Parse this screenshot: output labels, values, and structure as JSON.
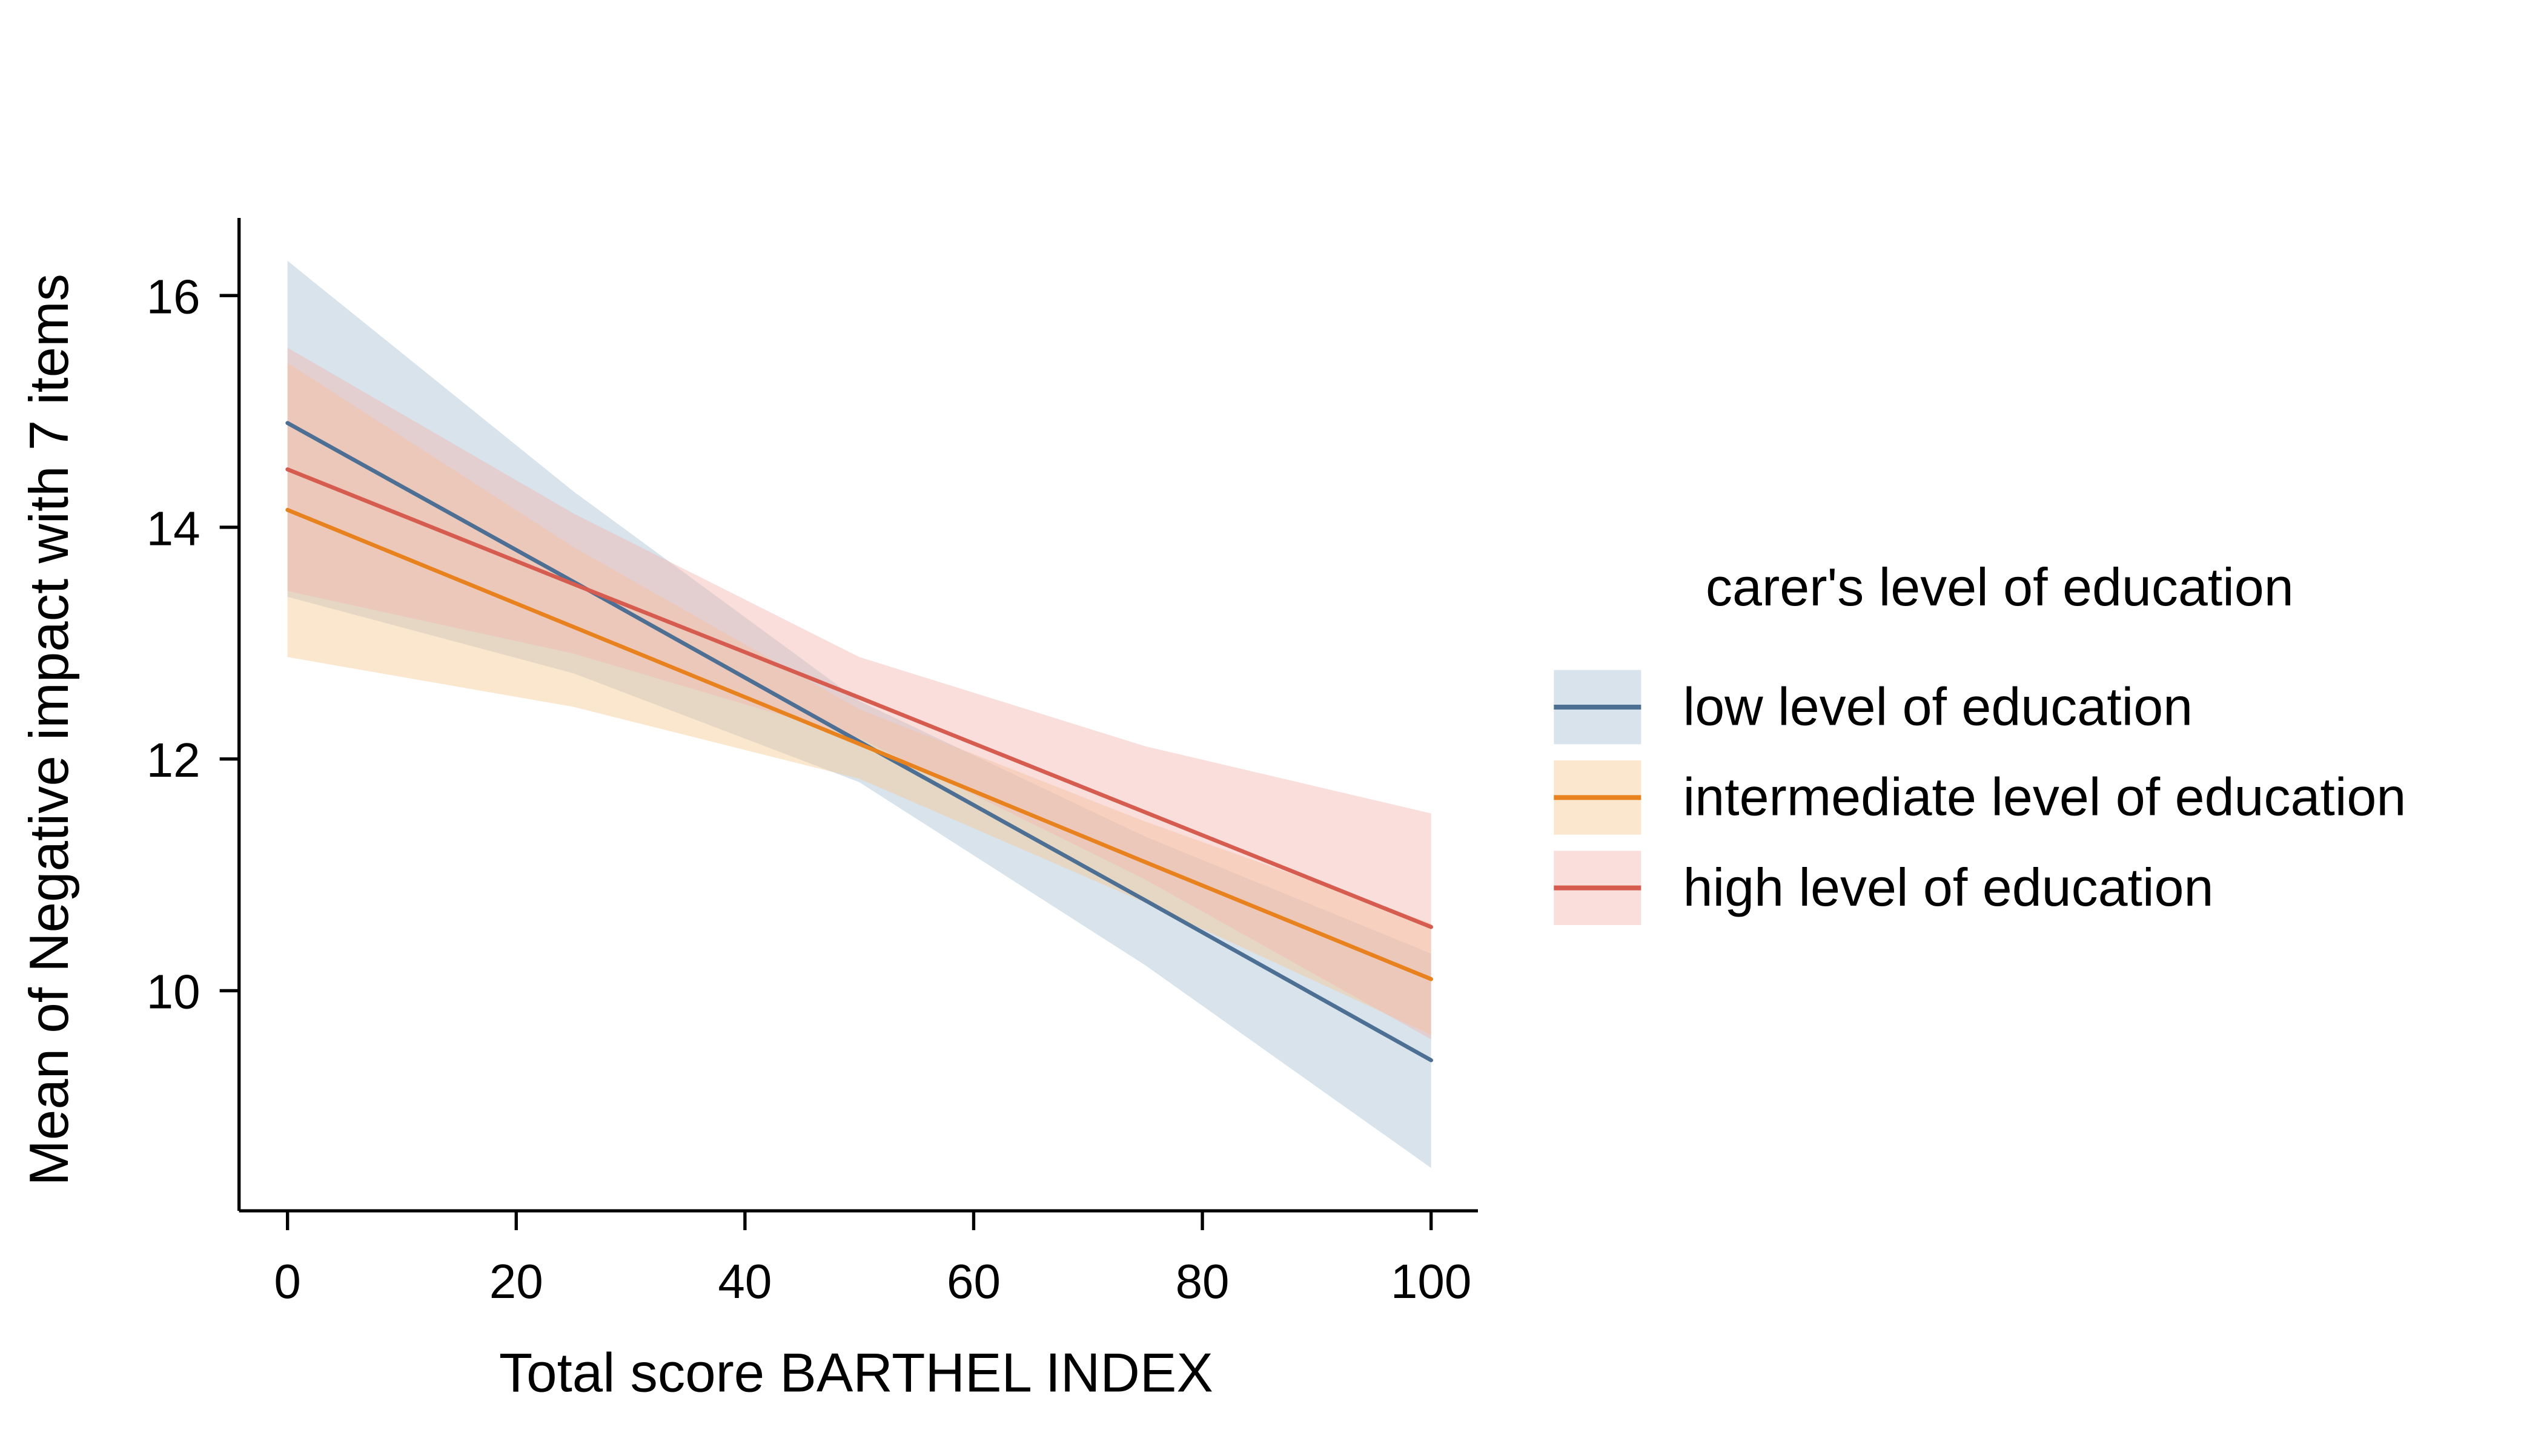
{
  "chart_data": {
    "type": "line",
    "title": "",
    "xlabel": "Total score BARTHEL INDEX",
    "ylabel": "Mean of Negative impact with 7 items",
    "legend_title": "carer's level of education",
    "legend_position": "right",
    "grid": false,
    "xlim": [
      0,
      100
    ],
    "ylim": [
      8.1,
      16.67
    ],
    "x_ticks": [
      0,
      20,
      40,
      60,
      80,
      100
    ],
    "y_ticks": [
      10,
      12,
      14,
      16
    ],
    "x": [
      0,
      25,
      50,
      75,
      100
    ],
    "series": [
      {
        "name": "low level of education",
        "values": [
          14.9,
          13.53,
          12.15,
          10.78,
          9.4
        ],
        "ci_upper": [
          16.3,
          14.31,
          12.5,
          11.33,
          10.32
        ],
        "ci_lower": [
          13.4,
          12.74,
          11.8,
          10.22,
          8.47
        ],
        "line_color": "#4c6f93",
        "band_color": "#a9c0d4"
      },
      {
        "name": "intermediate level of education",
        "values": [
          14.15,
          13.14,
          12.13,
          11.11,
          10.1
        ],
        "ci_upper": [
          15.42,
          13.83,
          12.43,
          11.46,
          10.58
        ],
        "ci_lower": [
          12.88,
          12.45,
          11.83,
          10.76,
          9.62
        ],
        "line_color": "#e8821f",
        "band_color": "#f7c893"
      },
      {
        "name": "high level of education",
        "values": [
          14.5,
          13.51,
          12.53,
          11.54,
          10.55
        ],
        "ci_upper": [
          15.55,
          14.12,
          12.88,
          12.11,
          11.53
        ],
        "ci_lower": [
          13.45,
          12.91,
          12.18,
          10.96,
          9.58
        ],
        "line_color": "#d65c4f",
        "band_color": "#f2b6b0"
      }
    ],
    "band_opacity": 0.45
  }
}
